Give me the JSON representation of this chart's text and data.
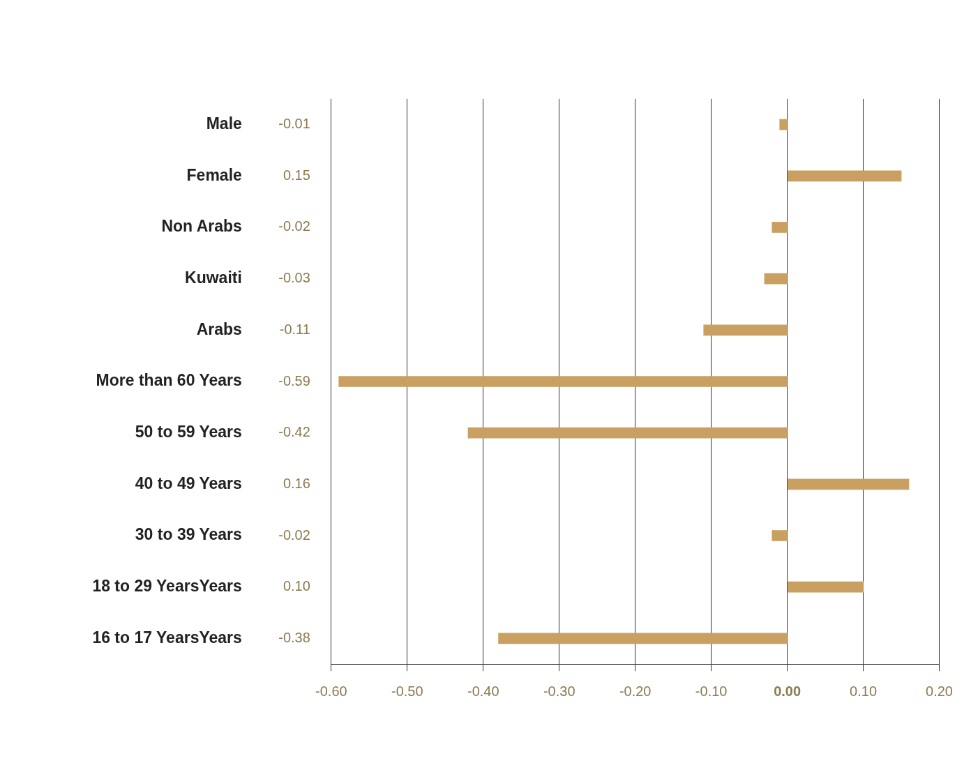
{
  "chart_data": {
    "type": "bar",
    "orientation": "horizontal",
    "categories": [
      "Male",
      "Female",
      "Non Arabs",
      "Kuwaiti",
      "Arabs",
      "More than 60 Years",
      "50 to 59 Years",
      "40 to 49 Years",
      "30 to 39 Years",
      "18 to 29 YearsYears",
      "16 to 17 YearsYears"
    ],
    "values": [
      -0.01,
      0.15,
      -0.02,
      -0.03,
      -0.11,
      -0.59,
      -0.42,
      0.16,
      -0.02,
      0.1,
      -0.38
    ],
    "value_labels": [
      "-0.01",
      "0.15",
      "-0.02",
      "-0.03",
      "-0.11",
      "-0.59",
      "-0.42",
      "0.16",
      "-0.02",
      "0.10",
      "-0.38"
    ],
    "color": "#c9a061",
    "xlim": [
      -0.6,
      0.2
    ],
    "xticks": [
      {
        "value": -0.6,
        "label": "-0.60"
      },
      {
        "value": -0.5,
        "label": "-0.50"
      },
      {
        "value": -0.4,
        "label": "-0.40"
      },
      {
        "value": -0.3,
        "label": "-0.30"
      },
      {
        "value": -0.2,
        "label": "-0.20"
      },
      {
        "value": -0.1,
        "label": "-0.10"
      },
      {
        "value": 0,
        "label": "0.00"
      },
      {
        "value": 0.1,
        "label": "0.10"
      },
      {
        "value": 0.2,
        "label": "0.20"
      }
    ],
    "grid": "x",
    "legend": false
  }
}
